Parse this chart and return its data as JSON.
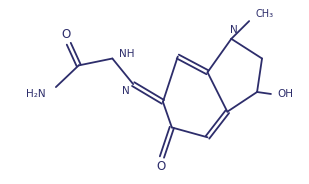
{
  "bg_color": "#ffffff",
  "line_color": "#2d2d6b",
  "lw": 1.3,
  "fs": 7.5,
  "fig_w": 3.09,
  "fig_h": 1.84,
  "xlim": [
    0,
    309
  ],
  "ylim": [
    0,
    184
  ]
}
